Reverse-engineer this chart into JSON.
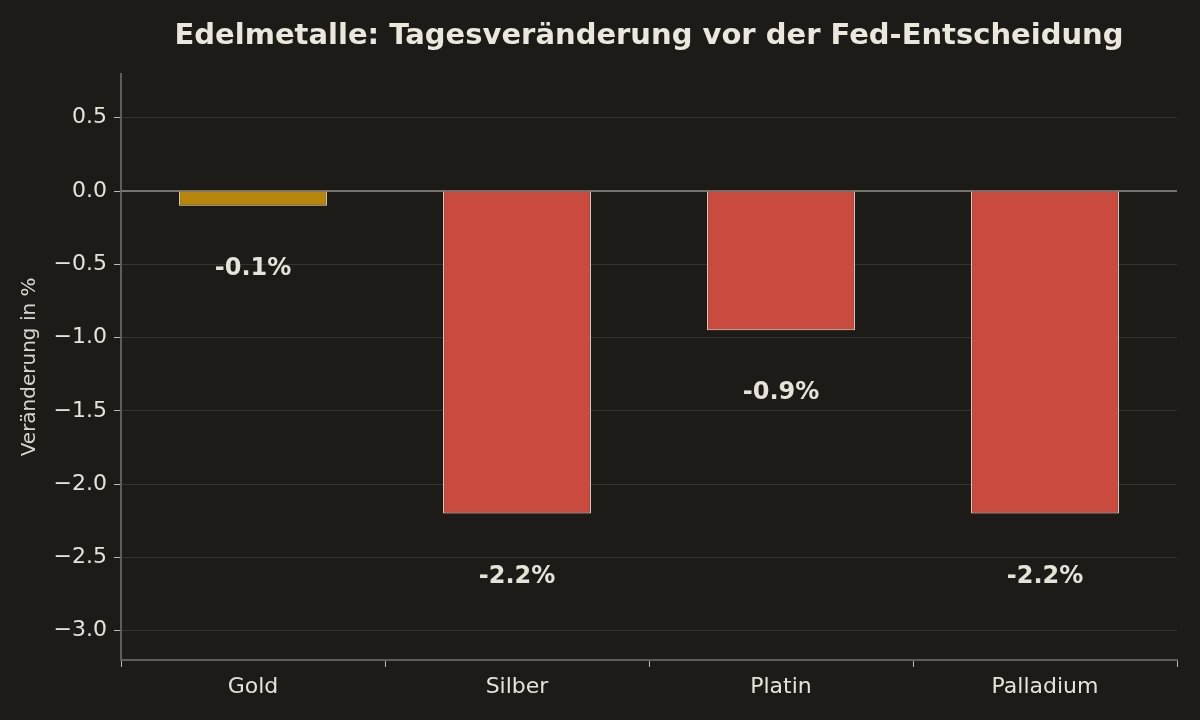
{
  "chart_data": {
    "type": "bar",
    "title": "Edelmetalle: Tagesveränderung vor der Fed-Entscheidung",
    "ylabel": "Veränderung in %",
    "categories": [
      "Gold",
      "Silber",
      "Platin",
      "Palladium"
    ],
    "values": [
      -0.1,
      -2.2,
      -0.95,
      -2.2
    ],
    "colors": [
      "#b8860b",
      "#c94a3e",
      "#c94a3e",
      "#c94a3e"
    ],
    "value_labels": [
      "-0.1%",
      "-2.2%",
      "-0.9%",
      "-2.2%"
    ],
    "ylim": [
      -3.2,
      0.8
    ],
    "yticks": [
      {
        "value": -3,
        "label": "−3.0"
      },
      {
        "value": -2.5,
        "label": "−2.5"
      },
      {
        "value": -2,
        "label": "−2.0"
      },
      {
        "value": -1.5,
        "label": "−1.5"
      },
      {
        "value": -1,
        "label": "−1.0"
      },
      {
        "value": -0.5,
        "label": "−0.5"
      },
      {
        "value": 0,
        "label": "0.0"
      },
      {
        "value": 0.5,
        "label": "0.5"
      }
    ],
    "grid": "y",
    "ref_lines": [
      {
        "axis": "y",
        "value": 0,
        "color": "#8c8b85"
      }
    ]
  }
}
